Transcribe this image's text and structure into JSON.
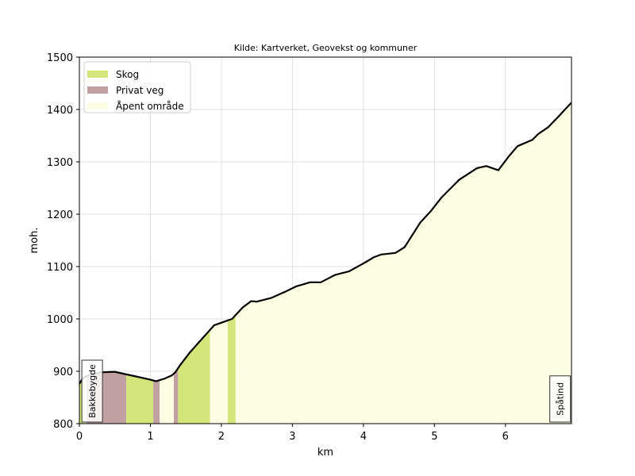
{
  "chart_data": {
    "type": "area",
    "title": "Kilde: Kartverket, Geovekst og kommuner",
    "xlabel": "km",
    "ylabel": "moh.",
    "xlim": [
      0,
      6.93
    ],
    "ylim": [
      800,
      1500
    ],
    "xticks": [
      0,
      1,
      2,
      3,
      4,
      5,
      6
    ],
    "yticks": [
      800,
      900,
      1000,
      1100,
      1200,
      1300,
      1400,
      1500
    ],
    "grid": true,
    "legend_position": "top-left",
    "colors": {
      "line": "#000000",
      "grid": "#e0e0e0"
    },
    "legend": [
      {
        "label": "Skog",
        "color": "#d4e67a"
      },
      {
        "label": "Privat veg",
        "color": "#c0a0a0"
      },
      {
        "label": "Åpent område",
        "color": "#fdfde3"
      }
    ],
    "profile": {
      "x": [
        0,
        0.05,
        0.15,
        0.3,
        0.5,
        0.7,
        0.9,
        1.0,
        1.08,
        1.2,
        1.3,
        1.35,
        1.42,
        1.55,
        1.7,
        1.9,
        2.15,
        2.3,
        2.42,
        2.5,
        2.7,
        2.9,
        3.05,
        3.25,
        3.4,
        3.6,
        3.8,
        4.0,
        4.15,
        4.25,
        4.45,
        4.58,
        4.8,
        4.95,
        5.1,
        5.35,
        5.6,
        5.73,
        5.9,
        6.05,
        6.17,
        6.38,
        6.46,
        6.6,
        6.75,
        6.88,
        6.93
      ],
      "y": [
        876,
        887,
        894,
        898,
        899,
        893,
        887,
        884,
        881,
        886,
        892,
        898,
        912,
        935,
        958,
        988,
        1000,
        1022,
        1034,
        1033,
        1040,
        1052,
        1062,
        1070,
        1070,
        1084,
        1091,
        1106,
        1118,
        1123,
        1126,
        1137,
        1184,
        1206,
        1232,
        1266,
        1288,
        1292,
        1284,
        1311,
        1330,
        1342,
        1353,
        1366,
        1387,
        1406,
        1413
      ]
    },
    "segments": [
      {
        "type": "Skog",
        "x0": 0.0,
        "x1": 0.07
      },
      {
        "type": "Åpent område",
        "x0": 0.07,
        "x1": 0.1
      },
      {
        "type": "Privat veg",
        "x0": 0.1,
        "x1": 0.66
      },
      {
        "type": "Skog",
        "x0": 0.66,
        "x1": 1.04
      },
      {
        "type": "Privat veg",
        "x0": 1.04,
        "x1": 1.13
      },
      {
        "type": "Åpent område",
        "x0": 1.13,
        "x1": 1.33
      },
      {
        "type": "Privat veg",
        "x0": 1.33,
        "x1": 1.39
      },
      {
        "type": "Skog",
        "x0": 1.39,
        "x1": 1.84
      },
      {
        "type": "Åpent område",
        "x0": 1.84,
        "x1": 2.09
      },
      {
        "type": "Skog",
        "x0": 2.09,
        "x1": 2.2
      },
      {
        "type": "Åpent område",
        "x0": 2.2,
        "x1": 6.93
      }
    ],
    "places": [
      {
        "label": "Bakkebygde",
        "x": 0.18
      },
      {
        "label": "Spåtind",
        "x": 6.77
      }
    ]
  }
}
